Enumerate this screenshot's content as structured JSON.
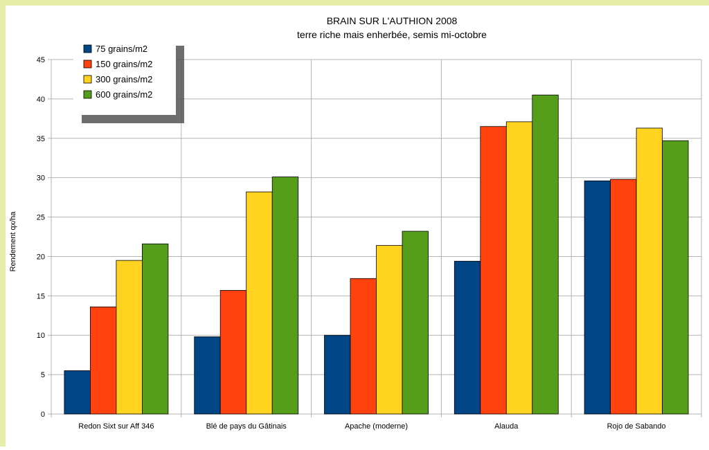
{
  "chart_data": {
    "type": "bar",
    "title": "BRAIN SUR L'AUTHION 2008",
    "subtitle": "terre riche mais enherbée, semis mi-octobre",
    "xlabel": "",
    "ylabel": "Rendement qx/ha",
    "ylim": [
      0,
      45
    ],
    "yticks": [
      0,
      5,
      10,
      15,
      20,
      25,
      30,
      35,
      40,
      45
    ],
    "grid": true,
    "legend_position": "top-left",
    "categories": [
      "Redon Sixt sur Aff 346",
      "Blé de pays du Gâtinais",
      "Apache (moderne)",
      "Alauda",
      "Rojo de Sabando"
    ],
    "series": [
      {
        "name": "75 grains/m2",
        "color": "#004586",
        "values": [
          5.5,
          9.8,
          10.0,
          19.4,
          29.6
        ]
      },
      {
        "name": "150 grains/m2",
        "color": "#ff420e",
        "values": [
          13.6,
          15.7,
          17.2,
          36.5,
          29.8
        ]
      },
      {
        "name": "300 grains/m2",
        "color": "#ffd320",
        "values": [
          19.5,
          28.2,
          21.4,
          37.1,
          36.3
        ]
      },
      {
        "name": "600 grains/m2",
        "color": "#579d1c",
        "values": [
          21.6,
          30.1,
          23.2,
          40.5,
          34.7
        ]
      }
    ]
  }
}
